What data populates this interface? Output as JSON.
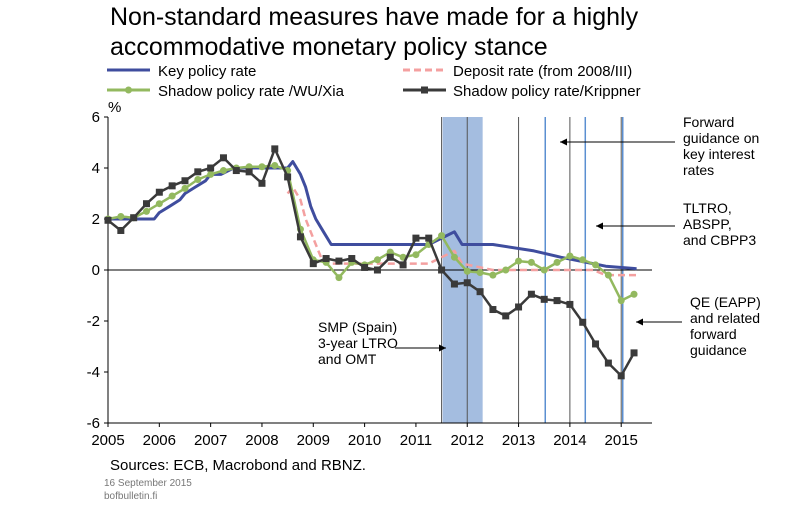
{
  "title": "Non-standard measures have made for a highly accommodative monetary policy stance",
  "sources": "Sources: ECB, Macrobond and RBNZ.",
  "date": "16 September 2015",
  "site": "bofbulletin.fi",
  "chart_data": {
    "type": "line",
    "ylabel": "%",
    "xlim": [
      2005,
      2015.6
    ],
    "ylim": [
      -6,
      6
    ],
    "x_ticks": [
      "2005",
      "2006",
      "2007",
      "2008",
      "2009",
      "2010",
      "2011",
      "2012",
      "2013",
      "2014",
      "2015"
    ],
    "y_ticks": [
      "6",
      "4",
      "2",
      "0",
      "-2",
      "-4",
      "-6"
    ],
    "colors": {
      "key": "#3f4d9e",
      "deposit": "#f4a0a0",
      "wuxia": "#93b95f",
      "krippner": "#3a3a3a",
      "band": "#a4bde0",
      "vline": "#5b8fd1"
    },
    "legend": [
      "Key policy rate",
      "Deposit rate (from 2008/III)",
      "Shadow policy rate /WU/Xia",
      "Shadow policy rate/Krippner"
    ],
    "shaded_band": [
      2011.52,
      2012.3
    ],
    "vertical_lines": [
      2013.52,
      2014.3,
      2015.03
    ],
    "series": [
      {
        "name": "Key policy rate",
        "key": "key",
        "x": [
          2005.0,
          2005.9,
          2006.0,
          2006.2,
          2006.4,
          2006.5,
          2006.7,
          2006.9,
          2007.0,
          2007.2,
          2007.45,
          2008.5,
          2008.6,
          2008.75,
          2008.85,
          2008.95,
          2009.05,
          2009.2,
          2009.35,
          2011.25,
          2011.5,
          2011.75,
          2011.9,
          2012.5,
          2013.3,
          2013.83,
          2014.45,
          2014.7,
          2015.3
        ],
        "y": [
          2.0,
          2.0,
          2.25,
          2.5,
          2.75,
          3.0,
          3.25,
          3.5,
          3.75,
          3.75,
          4.0,
          4.0,
          4.25,
          3.75,
          3.25,
          2.5,
          2.0,
          1.5,
          1.0,
          1.0,
          1.25,
          1.5,
          1.0,
          1.0,
          0.75,
          0.5,
          0.25,
          0.15,
          0.05
        ]
      },
      {
        "name": "Deposit rate (from 2008/III)",
        "key": "deposit",
        "x": [
          2008.5,
          2008.6,
          2008.75,
          2008.85,
          2008.95,
          2009.05,
          2009.15,
          2009.25,
          2009.3,
          2011.25,
          2011.5,
          2011.75,
          2011.9,
          2012.5,
          2013.3,
          2014.45,
          2014.7,
          2015.3
        ],
        "y": [
          3.0,
          3.25,
          2.75,
          2.0,
          1.5,
          1.0,
          0.5,
          0.25,
          0.25,
          0.25,
          0.5,
          0.75,
          0.25,
          0.0,
          0.0,
          0.0,
          -0.2,
          -0.2
        ]
      },
      {
        "name": "Shadow policy rate /WU/Xia",
        "key": "wuxia",
        "x": [
          2005.0,
          2005.25,
          2005.5,
          2005.75,
          2006.0,
          2006.25,
          2006.5,
          2006.75,
          2007.0,
          2007.25,
          2007.5,
          2007.75,
          2008.0,
          2008.25,
          2008.5,
          2008.75,
          2009.0,
          2009.25,
          2009.5,
          2009.75,
          2010.0,
          2010.25,
          2010.5,
          2010.75,
          2011.0,
          2011.25,
          2011.5,
          2011.75,
          2012.0,
          2012.25,
          2012.5,
          2012.75,
          2013.0,
          2013.25,
          2013.5,
          2013.75,
          2014.0,
          2014.25,
          2014.5,
          2014.75,
          2015.0,
          2015.25
        ],
        "y": [
          2.0,
          2.1,
          2.05,
          2.3,
          2.6,
          2.9,
          3.2,
          3.55,
          3.75,
          3.9,
          4.0,
          4.05,
          4.05,
          4.1,
          3.9,
          1.6,
          0.4,
          0.3,
          -0.3,
          0.3,
          0.2,
          0.4,
          0.7,
          0.5,
          0.6,
          1.0,
          1.35,
          0.5,
          -0.05,
          -0.1,
          -0.2,
          0.0,
          0.35,
          0.3,
          0.0,
          0.3,
          0.55,
          0.4,
          0.2,
          -0.2,
          -1.2,
          -0.95
        ]
      },
      {
        "name": "Shadow policy rate/Krippner",
        "key": "krippner",
        "x": [
          2005.0,
          2005.25,
          2005.5,
          2005.75,
          2006.0,
          2006.25,
          2006.5,
          2006.75,
          2007.0,
          2007.25,
          2007.5,
          2007.75,
          2008.0,
          2008.25,
          2008.5,
          2008.75,
          2009.0,
          2009.25,
          2009.5,
          2009.75,
          2010.0,
          2010.25,
          2010.5,
          2010.75,
          2011.0,
          2011.25,
          2011.5,
          2011.75,
          2012.0,
          2012.25,
          2012.5,
          2012.75,
          2013.0,
          2013.25,
          2013.5,
          2013.75,
          2014.0,
          2014.25,
          2014.5,
          2014.75,
          2015.0,
          2015.25
        ],
        "y": [
          1.95,
          1.55,
          2.05,
          2.6,
          3.05,
          3.3,
          3.5,
          3.85,
          4.0,
          4.4,
          3.9,
          3.85,
          3.4,
          4.75,
          3.65,
          1.3,
          0.25,
          0.45,
          0.35,
          0.45,
          0.1,
          0.0,
          0.5,
          0.2,
          1.25,
          1.25,
          0.0,
          -0.55,
          -0.5,
          -0.85,
          -1.55,
          -1.8,
          -1.45,
          -0.95,
          -1.15,
          -1.2,
          -1.35,
          -2.05,
          -2.9,
          -3.65,
          -4.15,
          -3.25
        ]
      }
    ],
    "annotations": [
      {
        "id": "forward-guidance",
        "lines": [
          "Forward",
          "guidance on",
          "key interest",
          "rates"
        ]
      },
      {
        "id": "tltro",
        "lines": [
          "TLTRO,",
          "ABSPP,",
          "and CBPP3"
        ]
      },
      {
        "id": "qe",
        "lines": [
          "QE (EAPP)",
          "and related",
          "forward",
          "guidance"
        ]
      },
      {
        "id": "smp",
        "lines": [
          "SMP (Spain)",
          "3-year LTRO",
          "and OMT"
        ]
      }
    ]
  }
}
